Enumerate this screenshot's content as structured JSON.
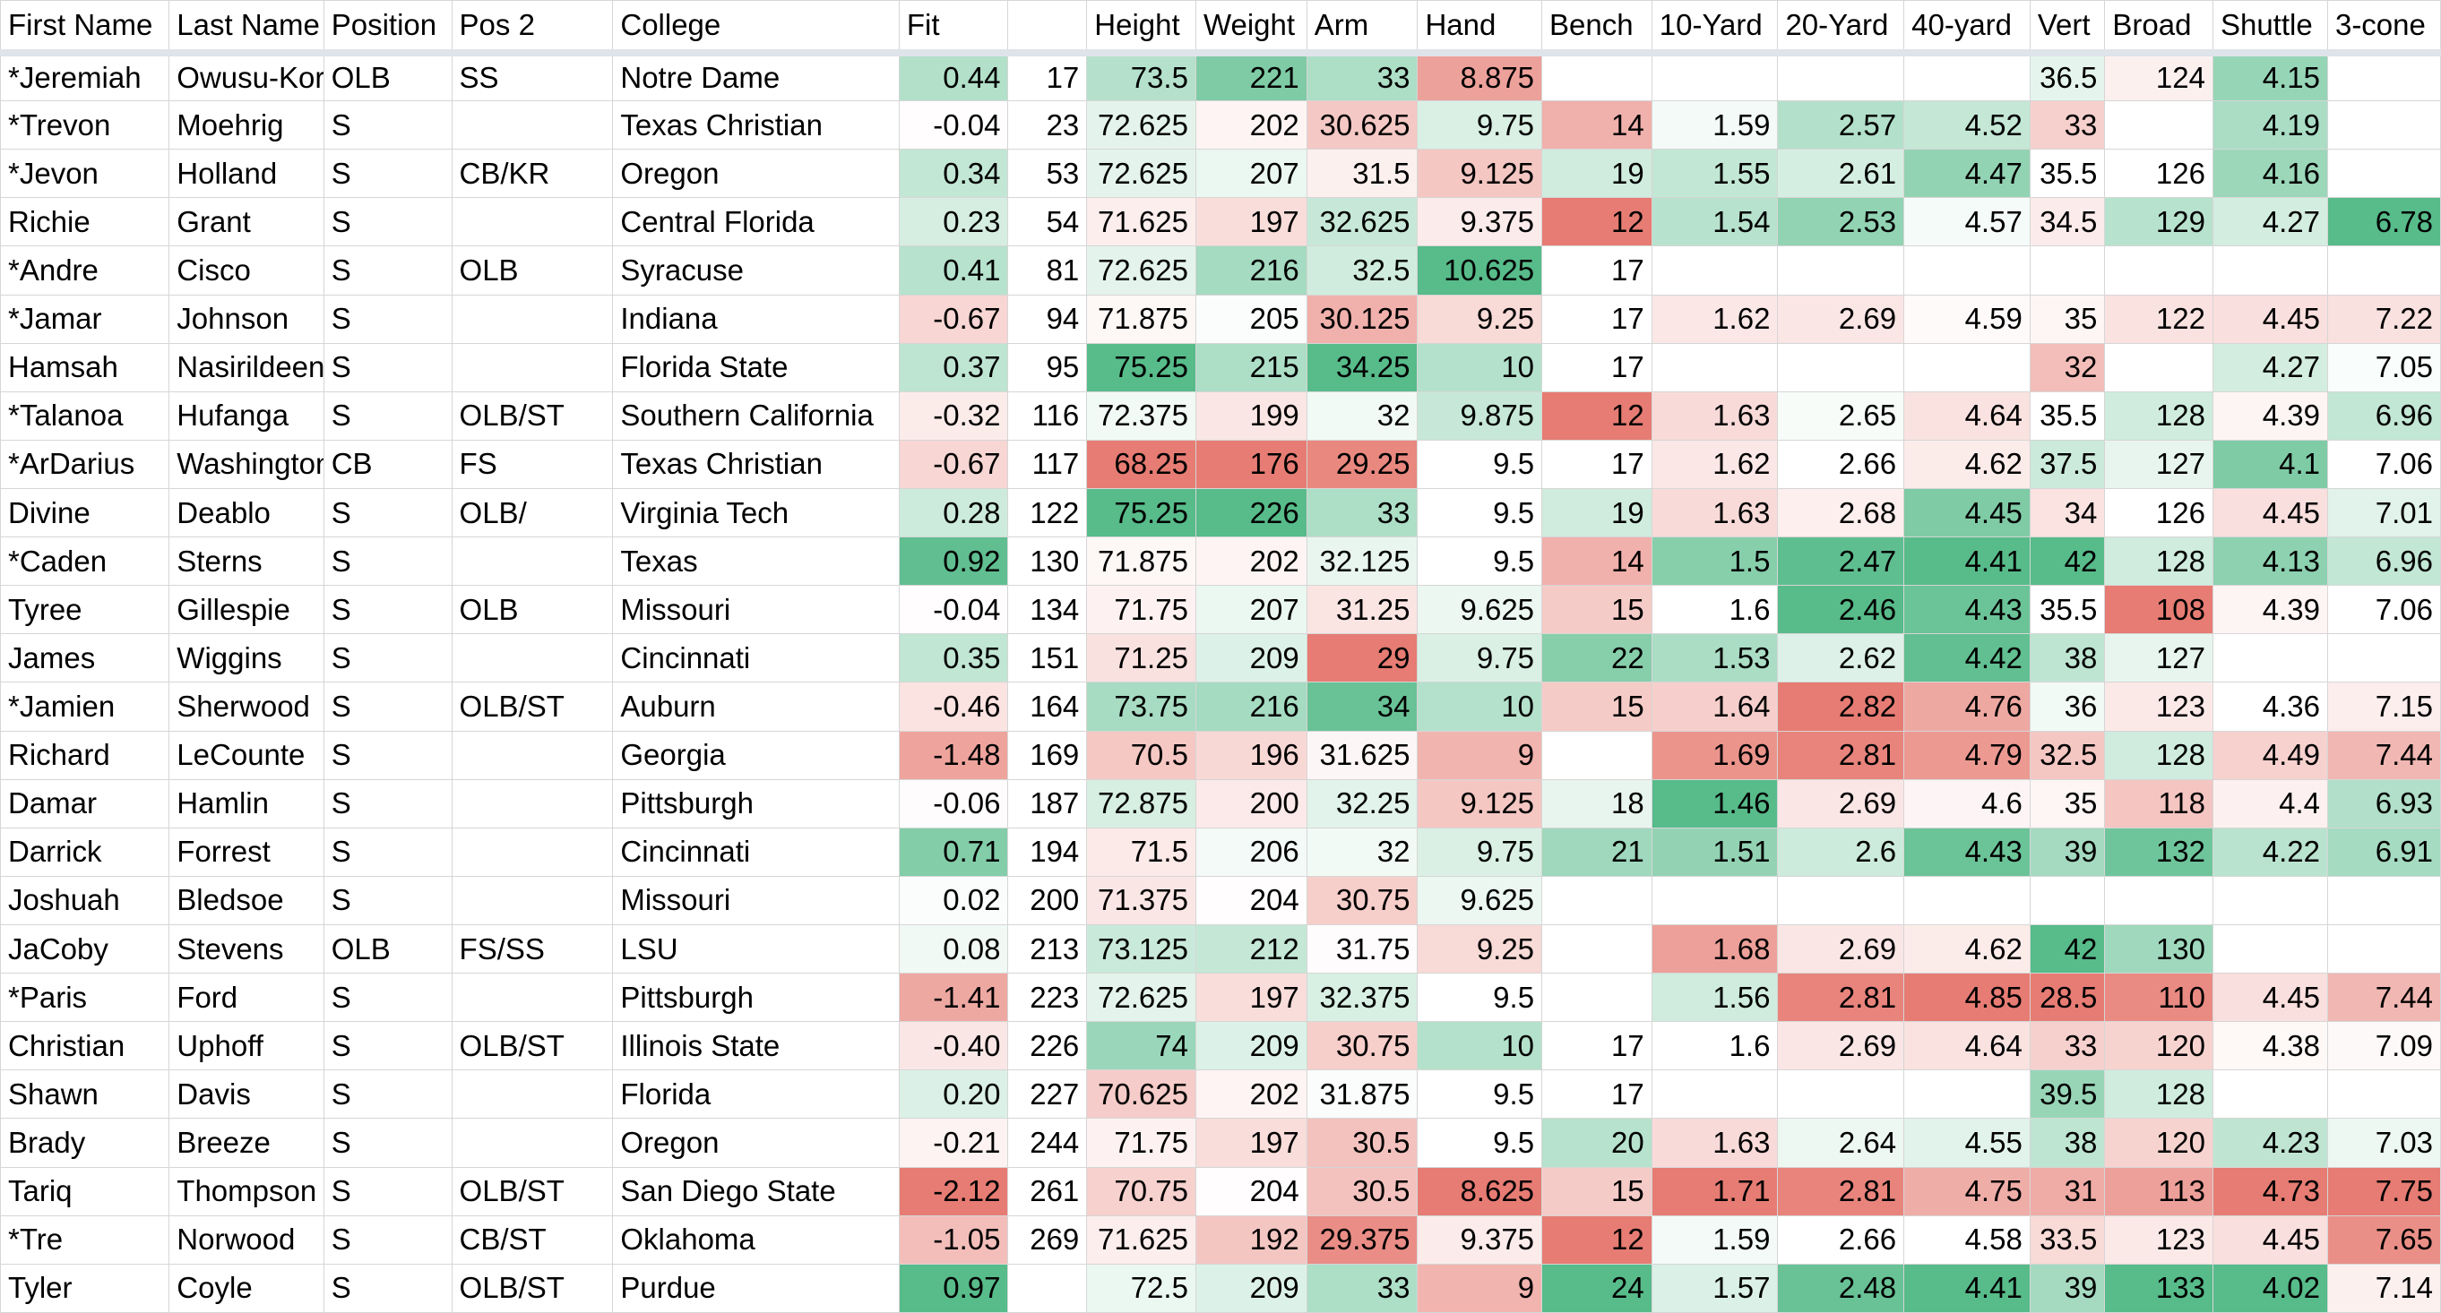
{
  "sheet": {
    "columns": [
      {
        "key": "first_name",
        "label": "First Name",
        "align": "left"
      },
      {
        "key": "last_name",
        "label": "Last Name",
        "align": "left"
      },
      {
        "key": "position",
        "label": "Position",
        "align": "left"
      },
      {
        "key": "pos2",
        "label": "Pos 2",
        "align": "left"
      },
      {
        "key": "college",
        "label": "College",
        "align": "left"
      },
      {
        "key": "fit",
        "label": "Fit",
        "align": "right"
      },
      {
        "key": "rank",
        "label": "",
        "align": "right"
      },
      {
        "key": "height",
        "label": "Height",
        "align": "right"
      },
      {
        "key": "weight",
        "label": "Weight",
        "align": "right"
      },
      {
        "key": "arm",
        "label": "Arm",
        "align": "right"
      },
      {
        "key": "hand",
        "label": "Hand",
        "align": "right"
      },
      {
        "key": "bench",
        "label": "Bench",
        "align": "right"
      },
      {
        "key": "ten_yard",
        "label": "10-Yard",
        "align": "right"
      },
      {
        "key": "twenty_yard",
        "label": "20-Yard",
        "align": "right"
      },
      {
        "key": "forty_yard",
        "label": "40-yard",
        "align": "right"
      },
      {
        "key": "vert",
        "label": "Vert",
        "align": "right"
      },
      {
        "key": "broad",
        "label": "Broad",
        "align": "right"
      },
      {
        "key": "shuttle",
        "label": "Shuttle",
        "align": "right"
      },
      {
        "key": "three_cone",
        "label": "3-cone",
        "align": "right"
      }
    ],
    "rows": [
      [
        "*Jeremiah",
        "Owusu-Koramoah",
        "OLB",
        "SS",
        "Notre Dame",
        "0.44",
        "17",
        "73.5",
        "221",
        "33",
        "8.875",
        "",
        "",
        "",
        "",
        "36.5",
        "124",
        "4.15",
        ""
      ],
      [
        "*Trevon",
        "Moehrig",
        "S",
        "",
        "Texas Christian",
        "-0.04",
        "23",
        "72.625",
        "202",
        "30.625",
        "9.75",
        "14",
        "1.59",
        "2.57",
        "4.52",
        "33",
        "",
        "4.19",
        ""
      ],
      [
        "*Jevon",
        "Holland",
        "S",
        "CB/KR",
        "Oregon",
        "0.34",
        "53",
        "72.625",
        "207",
        "31.5",
        "9.125",
        "19",
        "1.55",
        "2.61",
        "4.47",
        "35.5",
        "126",
        "4.16",
        ""
      ],
      [
        "Richie",
        "Grant",
        "S",
        "",
        "Central Florida",
        "0.23",
        "54",
        "71.625",
        "197",
        "32.625",
        "9.375",
        "12",
        "1.54",
        "2.53",
        "4.57",
        "34.5",
        "129",
        "4.27",
        "6.78"
      ],
      [
        "*Andre",
        "Cisco",
        "S",
        "OLB",
        "Syracuse",
        "0.41",
        "81",
        "72.625",
        "216",
        "32.5",
        "10.625",
        "17",
        "",
        "",
        "",
        "",
        "",
        "",
        ""
      ],
      [
        "*Jamar",
        "Johnson",
        "S",
        "",
        "Indiana",
        "-0.67",
        "94",
        "71.875",
        "205",
        "30.125",
        "9.25",
        "17",
        "1.62",
        "2.69",
        "4.59",
        "35",
        "122",
        "4.45",
        "7.22"
      ],
      [
        "Hamsah",
        "Nasirildeen",
        "S",
        "",
        "Florida State",
        "0.37",
        "95",
        "75.25",
        "215",
        "34.25",
        "10",
        "17",
        "",
        "",
        "",
        "32",
        "",
        "4.27",
        "7.05"
      ],
      [
        "*Talanoa",
        "Hufanga",
        "S",
        "OLB/ST",
        "Southern California",
        "-0.32",
        "116",
        "72.375",
        "199",
        "32",
        "9.875",
        "12",
        "1.63",
        "2.65",
        "4.64",
        "35.5",
        "128",
        "4.39",
        "6.96"
      ],
      [
        "*ArDarius",
        "Washington",
        "CB",
        "FS",
        "Texas Christian",
        "-0.67",
        "117",
        "68.25",
        "176",
        "29.25",
        "9.5",
        "17",
        "1.62",
        "2.66",
        "4.62",
        "37.5",
        "127",
        "4.1",
        "7.06"
      ],
      [
        "Divine",
        "Deablo",
        "S",
        "OLB/",
        "Virginia Tech",
        "0.28",
        "122",
        "75.25",
        "226",
        "33",
        "9.5",
        "19",
        "1.63",
        "2.68",
        "4.45",
        "34",
        "126",
        "4.45",
        "7.01"
      ],
      [
        "*Caden",
        "Sterns",
        "S",
        "",
        "Texas",
        "0.92",
        "130",
        "71.875",
        "202",
        "32.125",
        "9.5",
        "14",
        "1.5",
        "2.47",
        "4.41",
        "42",
        "128",
        "4.13",
        "6.96"
      ],
      [
        "Tyree",
        "Gillespie",
        "S",
        "OLB",
        "Missouri",
        "-0.04",
        "134",
        "71.75",
        "207",
        "31.25",
        "9.625",
        "15",
        "1.6",
        "2.46",
        "4.43",
        "35.5",
        "108",
        "4.39",
        "7.06"
      ],
      [
        "James",
        "Wiggins",
        "S",
        "",
        "Cincinnati",
        "0.35",
        "151",
        "71.25",
        "209",
        "29",
        "9.75",
        "22",
        "1.53",
        "2.62",
        "4.42",
        "38",
        "127",
        "",
        ""
      ],
      [
        "*Jamien",
        "Sherwood",
        "S",
        "OLB/ST",
        "Auburn",
        "-0.46",
        "164",
        "73.75",
        "216",
        "34",
        "10",
        "15",
        "1.64",
        "2.82",
        "4.76",
        "36",
        "123",
        "4.36",
        "7.15"
      ],
      [
        "Richard",
        "LeCounte",
        "S",
        "",
        "Georgia",
        "-1.48",
        "169",
        "70.5",
        "196",
        "31.625",
        "9",
        "",
        "1.69",
        "2.81",
        "4.79",
        "32.5",
        "128",
        "4.49",
        "7.44"
      ],
      [
        "Damar",
        "Hamlin",
        "S",
        "",
        "Pittsburgh",
        "-0.06",
        "187",
        "72.875",
        "200",
        "32.25",
        "9.125",
        "18",
        "1.46",
        "2.69",
        "4.6",
        "35",
        "118",
        "4.4",
        "6.93"
      ],
      [
        "Darrick",
        "Forrest",
        "S",
        "",
        "Cincinnati",
        "0.71",
        "194",
        "71.5",
        "206",
        "32",
        "9.75",
        "21",
        "1.51",
        "2.6",
        "4.43",
        "39",
        "132",
        "4.22",
        "6.91"
      ],
      [
        "Joshuah",
        "Bledsoe",
        "S",
        "",
        "Missouri",
        "0.02",
        "200",
        "71.375",
        "204",
        "30.75",
        "9.625",
        "",
        "",
        "",
        "",
        "",
        "",
        "",
        ""
      ],
      [
        "JaCoby",
        "Stevens",
        "OLB",
        "FS/SS",
        "LSU",
        "0.08",
        "213",
        "73.125",
        "212",
        "31.75",
        "9.25",
        "",
        "1.68",
        "2.69",
        "4.62",
        "42",
        "130",
        "",
        ""
      ],
      [
        "*Paris",
        "Ford",
        "S",
        "",
        "Pittsburgh",
        "-1.41",
        "223",
        "72.625",
        "197",
        "32.375",
        "9.5",
        "",
        "1.56",
        "2.81",
        "4.85",
        "28.5",
        "110",
        "4.45",
        "7.44"
      ],
      [
        "Christian",
        "Uphoff",
        "S",
        "OLB/ST",
        "Illinois State",
        "-0.40",
        "226",
        "74",
        "209",
        "30.75",
        "10",
        "17",
        "1.6",
        "2.69",
        "4.64",
        "33",
        "120",
        "4.38",
        "7.09"
      ],
      [
        "Shawn",
        "Davis",
        "S",
        "",
        "Florida",
        "0.20",
        "227",
        "70.625",
        "202",
        "31.875",
        "9.5",
        "17",
        "",
        "",
        "",
        "39.5",
        "128",
        "",
        ""
      ],
      [
        "Brady",
        "Breeze",
        "S",
        "",
        "Oregon",
        "-0.21",
        "244",
        "71.75",
        "197",
        "30.5",
        "9.5",
        "20",
        "1.63",
        "2.64",
        "4.55",
        "38",
        "120",
        "4.23",
        "7.03"
      ],
      [
        "Tariq",
        "Thompson",
        "S",
        "OLB/ST",
        "San Diego State",
        "-2.12",
        "261",
        "70.75",
        "204",
        "30.5",
        "8.625",
        "15",
        "1.71",
        "2.81",
        "4.75",
        "31",
        "113",
        "4.73",
        "7.75"
      ],
      [
        "*Tre",
        "Norwood",
        "S",
        "CB/ST",
        "Oklahoma",
        "-1.05",
        "269",
        "71.625",
        "192",
        "29.375",
        "9.375",
        "12",
        "1.59",
        "2.66",
        "4.58",
        "33.5",
        "123",
        "4.45",
        "7.65"
      ],
      [
        "Tyler",
        "Coyle",
        "S",
        "OLB/ST",
        "Purdue",
        "0.97",
        "",
        "72.5",
        "209",
        "33",
        "9",
        "24",
        "1.57",
        "2.48",
        "4.41",
        "39",
        "133",
        "4.02",
        "7.14"
      ]
    ],
    "colors": {
      "high_good": "#57bb8a",
      "low_bad": "#e67c73",
      "neutral": "#ffffff",
      "grid": "#d6d6d6",
      "header_rule": "#dfe3ea"
    },
    "color_scales": [
      {
        "col": 5,
        "lower_is_better": false
      },
      {
        "col": 7,
        "lower_is_better": false
      },
      {
        "col": 8,
        "lower_is_better": false
      },
      {
        "col": 9,
        "lower_is_better": false
      },
      {
        "col": 10,
        "lower_is_better": false
      },
      {
        "col": 11,
        "lower_is_better": false
      },
      {
        "col": 12,
        "lower_is_better": true
      },
      {
        "col": 13,
        "lower_is_better": true
      },
      {
        "col": 14,
        "lower_is_better": true
      },
      {
        "col": 15,
        "lower_is_better": false
      },
      {
        "col": 16,
        "lower_is_better": false
      },
      {
        "col": 17,
        "lower_is_better": true
      },
      {
        "col": 18,
        "lower_is_better": true
      }
    ]
  }
}
